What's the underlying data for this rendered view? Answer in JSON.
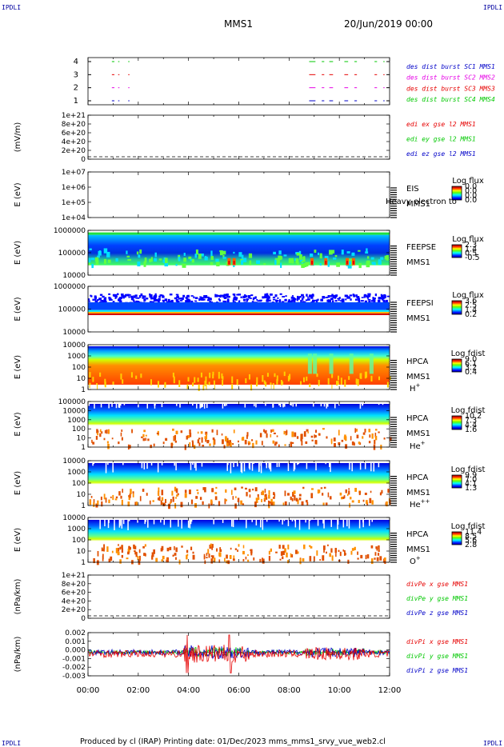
{
  "corner_tl": "IPDLI",
  "corner_tr": "IPDLI",
  "corner_bl": "IPDLI",
  "corner_br": "IPDLI",
  "title": "MMS1",
  "datetime": "20/Jun/2019 00:00",
  "footer": "Produced by cl (IRAP)   Printing date: 01/Dec/2023   mms_mms1_srvy_vue_web2.cl",
  "time_ticks": [
    "00:00",
    "02:00",
    "04:00",
    "06:00",
    "08:00",
    "10:00",
    "12:00"
  ],
  "colors": {
    "black": "#000000",
    "blue": "#0000c8",
    "green": "#00c800",
    "red": "#e60000",
    "magenta": "#e600e6",
    "ipdli": "#0000a0"
  },
  "chart_data": [
    {
      "type": "scatter",
      "name": "burst",
      "yticks": [
        "4",
        "3",
        "2",
        "1"
      ],
      "legend": [
        {
          "label": "des dist burst SC1 MMS1",
          "color": "#0000c8"
        },
        {
          "label": "des dist burst SC2 MMS2",
          "color": "#e600e6"
        },
        {
          "label": "des dist burst SC3 MMS3",
          "color": "#e60000"
        },
        {
          "label": "des dist burst SC4 MMS4",
          "color": "#00c800"
        }
      ],
      "segments_hours": [
        [
          0.95,
          1.05
        ],
        [
          1.2,
          1.25
        ],
        [
          1.6,
          1.65
        ],
        [
          8.8,
          9.05
        ],
        [
          9.3,
          9.4
        ],
        [
          9.6,
          9.75
        ],
        [
          10.2,
          10.35
        ],
        [
          10.6,
          10.7
        ],
        [
          11.4,
          11.5
        ],
        [
          11.75,
          11.8
        ]
      ]
    },
    {
      "type": "line",
      "name": "edi-e",
      "ylabel": "(mV/m)",
      "yticks": [
        "1e+21",
        "8e+20",
        "6e+20",
        "4e+20",
        "2e+20",
        "0"
      ],
      "legend": [
        {
          "label": "edi ex gse l2 MMS1",
          "color": "#e60000"
        },
        {
          "label": "edi ey gse l2 MMS1",
          "color": "#00c800"
        },
        {
          "label": "edi ez gse l2 MMS1",
          "color": "#0000c8"
        }
      ]
    },
    {
      "type": "heatmap",
      "name": "eis",
      "ylabel": "E (eV)",
      "yticks": [
        "1e+07",
        "1e+06",
        "1e+05",
        "1e+04"
      ],
      "instrument": "EIS",
      "spacecraft": "MMS1",
      "overlay": "Heavy electron to",
      "cbar_title": "Log flux",
      "cbar_ticks": [
        "0.0",
        "0.0",
        "0.0",
        "0.0"
      ]
    },
    {
      "type": "heatmap",
      "name": "feepse",
      "ylabel": "E (eV)",
      "yticks": [
        "1000000",
        "100000",
        "10000"
      ],
      "instrument": "FEEPSE",
      "spacecraft": "MMS1",
      "cbar_title": "Log flux",
      "cbar_ticks": [
        "2.3",
        "1.4",
        "0.5",
        "-0.5"
      ]
    },
    {
      "type": "heatmap",
      "name": "feepsi",
      "ylabel": "E (eV)",
      "yticks": [
        "1000000",
        "100000",
        "10000"
      ],
      "instrument": "FEEPSI",
      "spacecraft": "MMS1",
      "cbar_title": "Log flux",
      "cbar_ticks": [
        "3.6",
        "2.5",
        "1.4",
        "0.2"
      ]
    },
    {
      "type": "heatmap",
      "name": "hpca-h",
      "ylabel": "E (eV)",
      "yticks": [
        "10000",
        "1000",
        "100",
        "10",
        "1"
      ],
      "instrument": "HPCA",
      "spacecraft": "MMS1",
      "species": "H",
      "charge": "+",
      "cbar_title": "Log fdist",
      "cbar_ticks": [
        "9.0",
        "6.1",
        "3.2",
        "0.4"
      ]
    },
    {
      "type": "heatmap",
      "name": "hpca-he",
      "ylabel": "E (eV)",
      "yticks": [
        "100000",
        "10000",
        "1000",
        "100",
        "10",
        "1"
      ],
      "instrument": "HPCA",
      "spacecraft": "MMS1",
      "species": "He",
      "charge": "+",
      "cbar_title": "Log fdist",
      "cbar_ticks": [
        "10.2",
        "7.3",
        "4.4",
        "1.6"
      ]
    },
    {
      "type": "heatmap",
      "name": "hpca-he2",
      "ylabel": "E (eV)",
      "yticks": [
        "10000",
        "1000",
        "100",
        "10",
        "1"
      ],
      "instrument": "HPCA",
      "spacecraft": "MMS1",
      "species": "He",
      "charge": "++",
      "cbar_title": "Log fdist",
      "cbar_ticks": [
        "9.9",
        "7.0",
        "4.1",
        "1.3"
      ]
    },
    {
      "type": "heatmap",
      "name": "hpca-o",
      "ylabel": "E (eV)",
      "yticks": [
        "10000",
        "1000",
        "100",
        "10",
        "1"
      ],
      "instrument": "HPCA",
      "spacecraft": "MMS1",
      "species": "O",
      "charge": "+",
      "cbar_title": "Log fdist",
      "cbar_ticks": [
        "11.4",
        "8.5",
        "5.6",
        "2.8"
      ]
    },
    {
      "type": "line",
      "name": "divpe",
      "ylabel": "(nPa/km)",
      "yticks": [
        "1e+21",
        "8e+20",
        "6e+20",
        "4e+20",
        "2e+20",
        "0"
      ],
      "legend": [
        {
          "label": "divPe x gse MMS1",
          "color": "#e60000"
        },
        {
          "label": "divPe y gse MMS1",
          "color": "#00c800"
        },
        {
          "label": "divPe z gse MMS1",
          "color": "#0000c8"
        }
      ]
    },
    {
      "type": "line",
      "name": "divpi",
      "ylabel": "(nPa/km)",
      "yticks": [
        "0.002",
        "0.001",
        "0.000",
        "-0.001",
        "-0.002",
        "-0.003"
      ],
      "ylim": [
        -0.003,
        0.0025
      ],
      "legend": [
        {
          "label": "divPi x gse MMS1",
          "color": "#e60000"
        },
        {
          "label": "divPi y gse MMS1",
          "color": "#00c800"
        },
        {
          "label": "divPi z gse MMS1",
          "color": "#0000c8"
        }
      ]
    }
  ]
}
